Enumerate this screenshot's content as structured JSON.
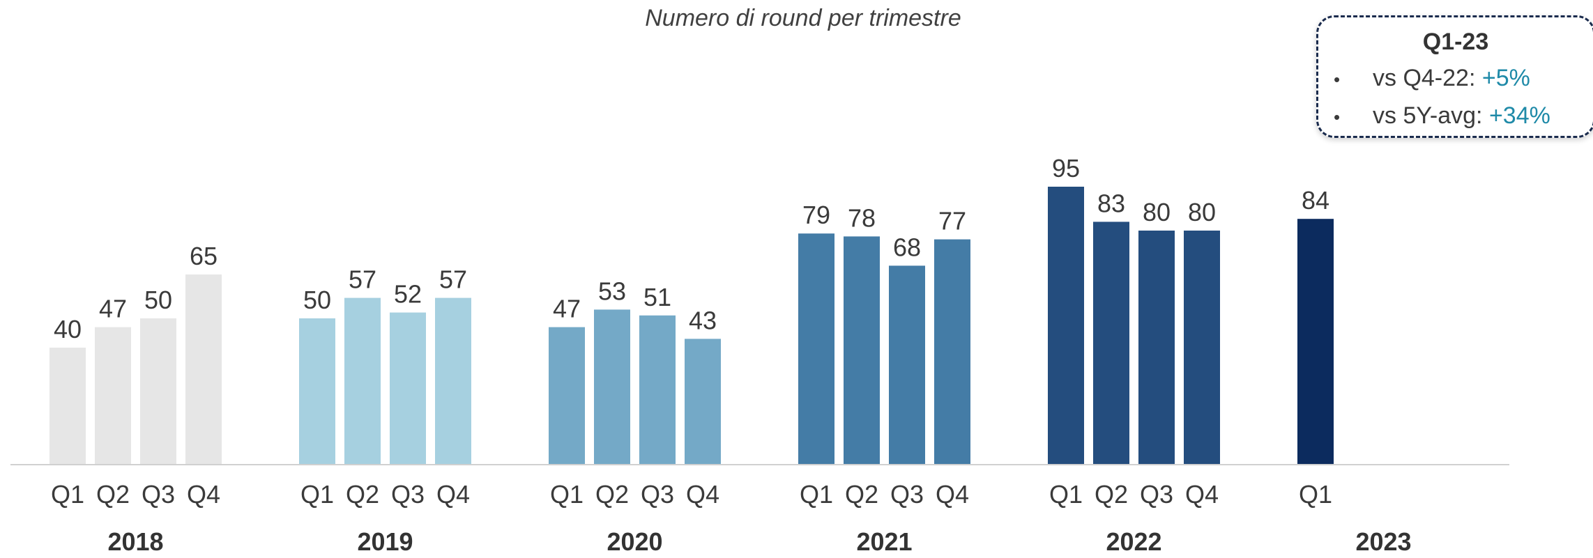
{
  "chart_data": {
    "type": "bar",
    "title": "Numero di round per trimestre",
    "groups": [
      {
        "year": "2018",
        "color": "#e6e6e6",
        "quarters": [
          "Q1",
          "Q2",
          "Q3",
          "Q4"
        ],
        "values": [
          40,
          47,
          50,
          65
        ]
      },
      {
        "year": "2019",
        "color": "#a6d0e0",
        "quarters": [
          "Q1",
          "Q2",
          "Q3",
          "Q4"
        ],
        "values": [
          50,
          57,
          52,
          57
        ]
      },
      {
        "year": "2020",
        "color": "#74a9c7",
        "quarters": [
          "Q1",
          "Q2",
          "Q3",
          "Q4"
        ],
        "values": [
          47,
          53,
          51,
          43
        ]
      },
      {
        "year": "2021",
        "color": "#447ca6",
        "quarters": [
          "Q1",
          "Q2",
          "Q3",
          "Q4"
        ],
        "values": [
          79,
          78,
          68,
          77
        ]
      },
      {
        "year": "2022",
        "color": "#244d7e",
        "quarters": [
          "Q1",
          "Q2",
          "Q3",
          "Q4"
        ],
        "values": [
          95,
          83,
          80,
          80
        ]
      },
      {
        "year": "2023",
        "color": "#0c2b5e",
        "quarters": [
          "Q1"
        ],
        "values": [
          84
        ]
      }
    ],
    "ylim": [
      0,
      100
    ],
    "grid": false,
    "data_labels": true
  },
  "callout": {
    "title": "Q1-23",
    "items": [
      {
        "label": "vs Q4-22: ",
        "delta": "+5%"
      },
      {
        "label": "vs 5Y-avg: ",
        "delta": "+34%"
      }
    ],
    "bullet": "•",
    "delta_color": "#1f8aa8"
  }
}
